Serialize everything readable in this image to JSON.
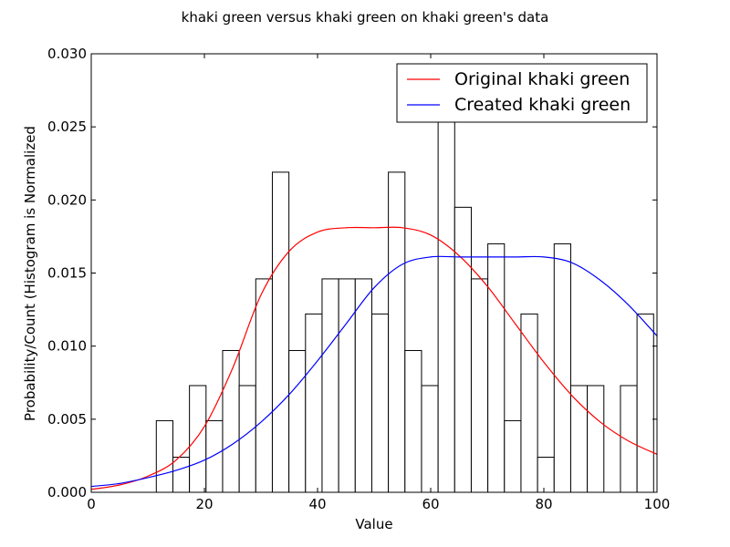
{
  "chart_data": {
    "type": "bar",
    "title": "khaki green versus khaki green on khaki green's data",
    "xlabel": "Value",
    "ylabel": "Probability/Count (Histogram is Normalized",
    "xlim": [
      0,
      100
    ],
    "ylim": [
      0,
      0.03
    ],
    "x_ticks": [
      "0",
      "20",
      "40",
      "60",
      "80",
      "100"
    ],
    "y_ticks": [
      "0.000",
      "0.005",
      "0.010",
      "0.015",
      "0.020",
      "0.025",
      "0.030"
    ],
    "legend_position": "top-right",
    "grid": false,
    "histogram": {
      "bin_start": 11.5,
      "bin_width": 2.93,
      "values": [
        0.0049,
        0.0024,
        0.0073,
        0.0049,
        0.0097,
        0.0073,
        0.0146,
        0.0219,
        0.0097,
        0.0122,
        0.0146,
        0.0146,
        0.0146,
        0.0122,
        0.0219,
        0.0097,
        0.0073,
        0.0265,
        0.0195,
        0.0146,
        0.017,
        0.0049,
        0.0122,
        0.0024,
        0.017,
        0.0073,
        0.0073,
        0,
        0.0073,
        0.0122
      ]
    },
    "series": [
      {
        "name": "Original khaki green",
        "color": "#ff0000",
        "x": [
          0,
          5,
          10,
          15,
          20,
          25,
          30,
          35,
          40,
          45,
          50,
          55,
          60,
          65,
          70,
          75,
          80,
          85,
          90,
          95,
          100
        ],
        "y": [
          0.0002,
          0.0005,
          0.0011,
          0.0022,
          0.0045,
          0.0085,
          0.0135,
          0.0165,
          0.0178,
          0.0181,
          0.0181,
          0.0181,
          0.0176,
          0.0162,
          0.0141,
          0.0115,
          0.0089,
          0.0066,
          0.0048,
          0.0035,
          0.0026
        ]
      },
      {
        "name": "Created khaki green",
        "color": "#0000ff",
        "x": [
          0,
          5,
          10,
          15,
          20,
          25,
          30,
          35,
          40,
          45,
          50,
          55,
          60,
          65,
          70,
          75,
          80,
          85,
          90,
          95,
          100
        ],
        "y": [
          0.0004,
          0.0006,
          0.001,
          0.0015,
          0.0022,
          0.0033,
          0.0048,
          0.0067,
          0.009,
          0.0115,
          0.014,
          0.0156,
          0.0161,
          0.0161,
          0.0161,
          0.0161,
          0.0161,
          0.0157,
          0.0145,
          0.0128,
          0.0107
        ]
      }
    ]
  }
}
